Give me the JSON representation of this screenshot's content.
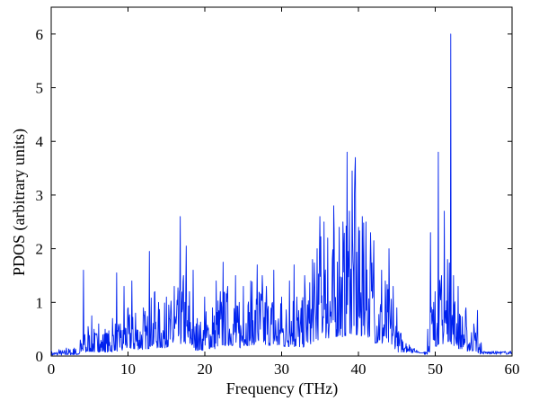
{
  "chart_data": {
    "type": "line",
    "title": "",
    "xlabel": "Frequency (THz)",
    "ylabel": "PDOS (arbitrary units)",
    "xlim": [
      0,
      60
    ],
    "ylim": [
      0,
      6.5
    ],
    "xticks": [
      0,
      10,
      20,
      30,
      40,
      50,
      60
    ],
    "yticks": [
      0,
      1,
      2,
      3,
      4,
      5,
      6
    ],
    "grid": false,
    "legend": "none",
    "series": [
      {
        "color": "#0022ee",
        "x": [
          0,
          1,
          2,
          3,
          3.8,
          4.2,
          4.4,
          4.8,
          5.3,
          5.6,
          6.2,
          7,
          8,
          8.5,
          9,
          9.5,
          10,
          10.5,
          11,
          12,
          12.8,
          13.5,
          14,
          15,
          16,
          16.8,
          17.2,
          17.6,
          18,
          18.5,
          19,
          20,
          21,
          21.5,
          22,
          22.4,
          23,
          24,
          24.5,
          25,
          26,
          26.8,
          27.5,
          28,
          29,
          30,
          31,
          31.6,
          32,
          33,
          34,
          34.6,
          35,
          35.5,
          36,
          36.8,
          37.5,
          38,
          38.5,
          38.8,
          39.2,
          39.6,
          40,
          40.5,
          41,
          41.6,
          42,
          43,
          43.5,
          44,
          44.5,
          45,
          46,
          47,
          48,
          48.5,
          49,
          49.4,
          50,
          50.4,
          50.8,
          51.2,
          51.6,
          52,
          52.4,
          53,
          54,
          55,
          55.5,
          56,
          57,
          58,
          59,
          60
        ],
        "y": [
          0.1,
          0.12,
          0.15,
          0.15,
          0.3,
          1.6,
          0.4,
          0.55,
          0.75,
          0.5,
          0.6,
          0.5,
          0.7,
          1.55,
          0.6,
          1.3,
          0.9,
          1.4,
          0.8,
          0.9,
          1.95,
          1.2,
          1.0,
          1.1,
          1.3,
          2.6,
          1.5,
          2.05,
          1.2,
          1.6,
          0.7,
          1.1,
          0.9,
          1.4,
          1.2,
          1.75,
          1.3,
          1.5,
          1.0,
          1.3,
          1.4,
          1.7,
          1.5,
          1.3,
          1.6,
          1.1,
          1.4,
          1.7,
          1.1,
          1.5,
          1.8,
          2.0,
          2.6,
          2.5,
          2.2,
          2.8,
          2.4,
          2.5,
          3.8,
          2.7,
          3.45,
          3.7,
          2.4,
          2.6,
          2.5,
          2.3,
          2.15,
          1.6,
          1.4,
          2.0,
          1.3,
          0.9,
          0.5,
          0.25,
          0.1,
          0.2,
          0.5,
          2.3,
          1.2,
          3.8,
          1.5,
          2.7,
          1.8,
          6.0,
          1.5,
          1.3,
          0.9,
          0.6,
          0.85,
          0.25,
          0.15,
          0.1,
          0.08,
          0.05
        ]
      }
    ]
  }
}
